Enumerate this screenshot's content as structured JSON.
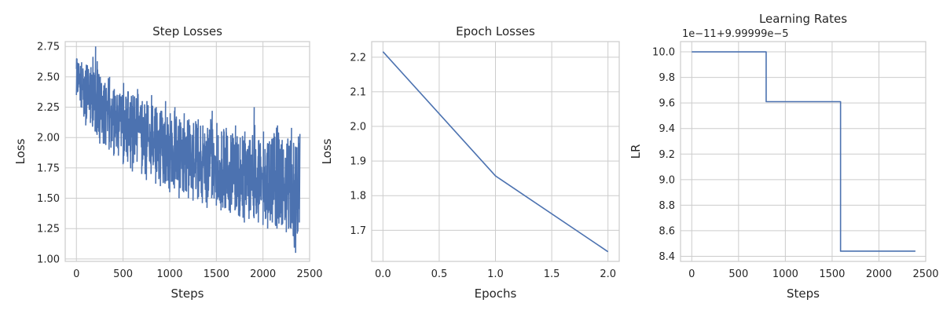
{
  "style": {
    "line_color": "#4c72b0",
    "grid_color": "#cccccc",
    "text_color": "#262626"
  },
  "chart_data": [
    {
      "type": "line",
      "title": "Step Losses",
      "xlabel": "Steps",
      "ylabel": "Loss",
      "xlim": [
        -120,
        2500
      ],
      "ylim": [
        0.98,
        2.79
      ],
      "xticks": [
        0,
        500,
        1000,
        1500,
        2000,
        2500
      ],
      "xtick_labels": [
        "0",
        "500",
        "1000",
        "1500",
        "2000",
        "2500"
      ],
      "yticks": [
        1.0,
        1.25,
        1.5,
        1.75,
        2.0,
        2.25,
        2.5,
        2.75
      ],
      "ytick_labels": [
        "1.00",
        "1.25",
        "1.50",
        "1.75",
        "2.00",
        "2.25",
        "2.50",
        "2.75"
      ],
      "grid": true,
      "series": [
        {
          "x": [
            0,
            50,
            100,
            150,
            200,
            250,
            300,
            350,
            400,
            450,
            500,
            550,
            600,
            650,
            700,
            750,
            800,
            850,
            900,
            950,
            1000,
            1050,
            1100,
            1150,
            1200,
            1250,
            1300,
            1350,
            1400,
            1450,
            1500,
            1550,
            1600,
            1650,
            1700,
            1750,
            1800,
            1850,
            1900,
            1950,
            2000,
            2050,
            2100,
            2150,
            2200,
            2250,
            2300,
            2350,
            2390
          ],
          "y": [
            2.55,
            2.45,
            2.35,
            2.38,
            2.3,
            2.27,
            2.2,
            2.22,
            2.18,
            2.12,
            2.15,
            2.1,
            2.05,
            2.08,
            2.02,
            1.98,
            2.0,
            1.95,
            1.9,
            1.94,
            1.88,
            1.9,
            1.85,
            1.87,
            1.83,
            1.8,
            1.82,
            1.78,
            1.75,
            1.8,
            1.76,
            1.72,
            1.74,
            1.7,
            1.73,
            1.68,
            1.7,
            1.66,
            1.69,
            1.65,
            1.67,
            1.62,
            1.64,
            1.6,
            1.63,
            1.6,
            1.62,
            1.58,
            1.6
          ],
          "y_min": [
            2.35,
            2.25,
            2.1,
            2.12,
            2.05,
            1.95,
            1.95,
            1.9,
            1.85,
            1.85,
            1.78,
            1.8,
            1.72,
            1.8,
            1.7,
            1.65,
            1.7,
            1.62,
            1.6,
            1.62,
            1.55,
            1.58,
            1.5,
            1.55,
            1.5,
            1.48,
            1.5,
            1.46,
            1.42,
            1.5,
            1.44,
            1.4,
            1.42,
            1.38,
            1.4,
            1.35,
            1.3,
            1.33,
            1.35,
            1.3,
            1.28,
            1.25,
            1.3,
            1.25,
            1.28,
            1.22,
            1.25,
            1.05,
            1.3
          ],
          "y_max": [
            2.65,
            2.62,
            2.6,
            2.58,
            2.75,
            2.5,
            2.45,
            2.5,
            2.4,
            2.35,
            2.45,
            2.38,
            2.35,
            2.4,
            2.3,
            2.3,
            2.35,
            2.25,
            2.22,
            2.3,
            2.2,
            2.25,
            2.15,
            2.2,
            2.15,
            2.12,
            2.15,
            2.1,
            2.08,
            2.22,
            2.12,
            2.05,
            2.08,
            2.02,
            2.1,
            2.0,
            2.05,
            1.98,
            2.25,
            1.98,
            2.05,
            1.95,
            1.98,
            2.1,
            1.98,
            1.95,
            2.08,
            1.92,
            2.03
          ]
        }
      ]
    },
    {
      "type": "line",
      "title": "Epoch Losses",
      "xlabel": "Epochs",
      "ylabel": "Loss",
      "xlim": [
        -0.1,
        2.1
      ],
      "ylim": [
        1.61,
        2.245
      ],
      "xticks": [
        0.0,
        0.5,
        1.0,
        1.5,
        2.0
      ],
      "xtick_labels": [
        "0.0",
        "0.5",
        "1.0",
        "1.5",
        "2.0"
      ],
      "yticks": [
        1.7,
        1.8,
        1.9,
        2.0,
        2.1,
        2.2
      ],
      "ytick_labels": [
        "1.7",
        "1.8",
        "1.9",
        "2.0",
        "2.1",
        "2.2"
      ],
      "grid": true,
      "series": [
        {
          "x": [
            0,
            1,
            2
          ],
          "y": [
            2.216,
            1.857,
            1.638
          ]
        }
      ]
    },
    {
      "type": "line",
      "title": "Learning Rates",
      "offset_text": "1e−11+9.99999e−5",
      "xlabel": "Steps",
      "ylabel": "LR",
      "xlim": [
        -120,
        2500
      ],
      "ylim": [
        8.36,
        10.08
      ],
      "xticks": [
        0,
        500,
        1000,
        1500,
        2000,
        2500
      ],
      "xtick_labels": [
        "0",
        "500",
        "1000",
        "1500",
        "2000",
        "2500"
      ],
      "yticks": [
        8.4,
        8.6,
        8.8,
        9.0,
        9.2,
        9.4,
        9.6,
        9.8,
        10.0
      ],
      "ytick_labels": [
        "8.4",
        "8.6",
        "8.8",
        "9.0",
        "9.2",
        "9.4",
        "9.6",
        "9.8",
        "10.0"
      ],
      "grid": true,
      "series": [
        {
          "step": true,
          "x": [
            0,
            795,
            795,
            1590,
            1590,
            2390
          ],
          "y": [
            10.0,
            10.0,
            9.61,
            9.61,
            8.44,
            8.44
          ]
        }
      ]
    }
  ]
}
